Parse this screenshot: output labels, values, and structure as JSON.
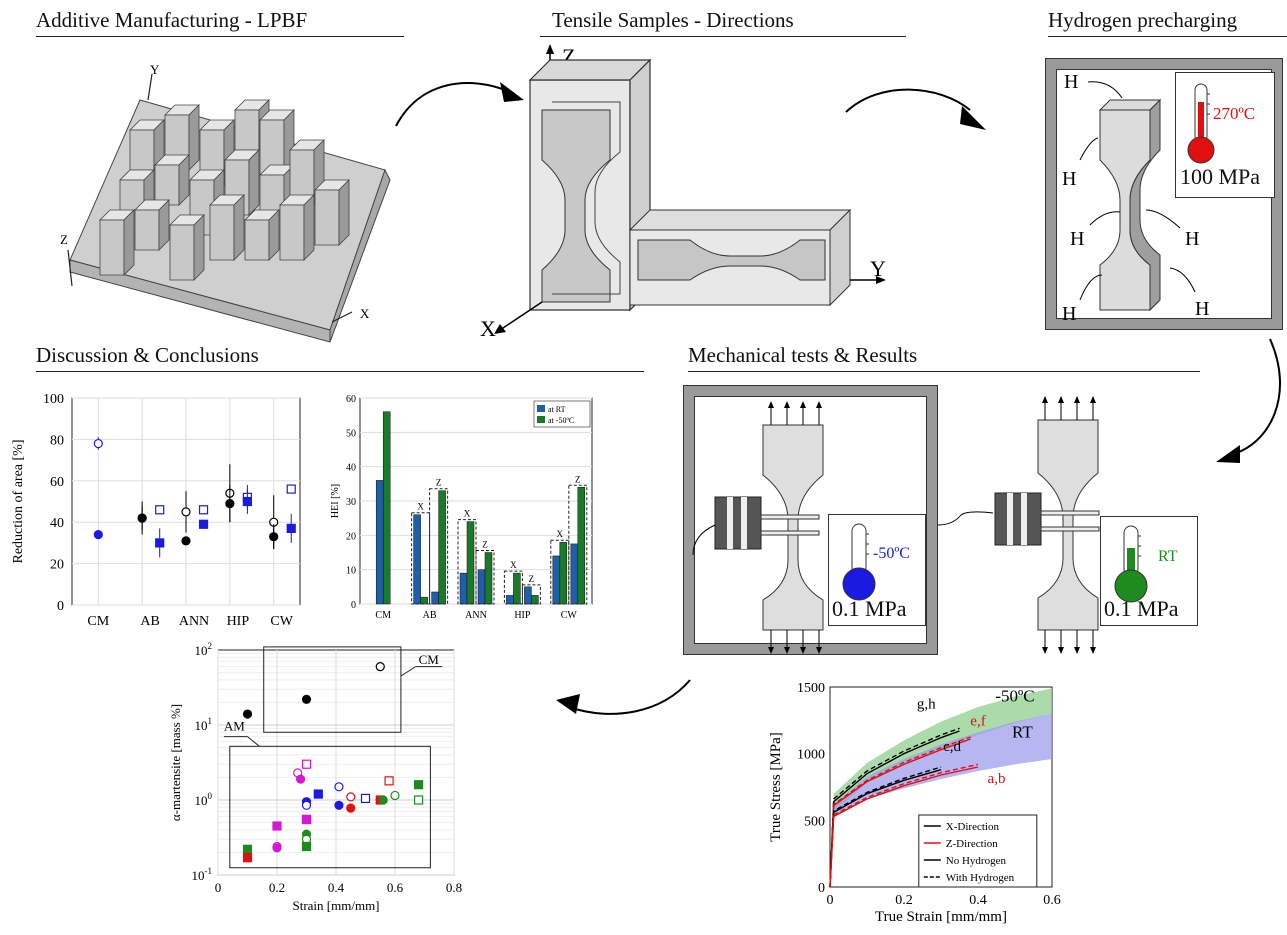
{
  "sections": {
    "am": "Additive Manufacturing - LPBF",
    "tensile": "Tensile Samples - Directions",
    "hydrogen": "Hydrogen precharging",
    "discussion": "Discussion & Conclusions",
    "mechanical": "Mechanical tests & Results"
  },
  "am_axes": {
    "y": "Y",
    "z": "Z",
    "x": "X"
  },
  "tensile_axes": {
    "z": "Z",
    "x": "X",
    "y": "Y"
  },
  "precharge": {
    "h": "H",
    "temperature": "270ºC",
    "pressure": "100 MPa"
  },
  "mech_tests": {
    "cold": {
      "temperature": "-50ºC",
      "pressure": "0.1 MPa"
    },
    "rt": {
      "temperature": "RT",
      "pressure": "0.1 MPa"
    }
  },
  "colors": {
    "blue": "#1a1ae0",
    "green": "#1f8a1f",
    "red": "#e01010",
    "magenta": "#d21ad2",
    "bar_blue": "#1f5fa8",
    "bar_green": "#1a7a2a"
  },
  "chart_data": [
    {
      "id": "reduction-of-area",
      "type": "scatter",
      "ylabel": "Reduction of area [%]",
      "categories": [
        "CM",
        "AB",
        "ANN",
        "HIP",
        "CW"
      ],
      "ylim": [
        0,
        100
      ],
      "yticks": [
        0,
        20,
        40,
        60,
        80,
        100
      ],
      "grid": true,
      "series": [
        {
          "marker": "open-circle",
          "color": "#1a1ae0",
          "x": [
            1.0
          ],
          "y": [
            78
          ],
          "err": [
            3
          ]
        },
        {
          "marker": "filled-circle",
          "color": "#1a1ae0",
          "x": [
            1.0
          ],
          "y": [
            34
          ],
          "err": [
            1
          ]
        },
        {
          "marker": "open-circle",
          "color": "#000000",
          "x": [
            2.0,
            3.0,
            4.0,
            5.0
          ],
          "y": [
            42,
            45,
            54,
            40
          ],
          "err": [
            6,
            10,
            14,
            13
          ]
        },
        {
          "marker": "filled-circle",
          "color": "#000000",
          "x": [
            2.0,
            3.0,
            4.0,
            5.0
          ],
          "y": [
            42,
            31,
            49,
            33
          ],
          "err": [
            8,
            0,
            9,
            6
          ]
        },
        {
          "marker": "open-square",
          "color": "#1a1ae0",
          "x": [
            2.4,
            3.4,
            4.4,
            5.4
          ],
          "y": [
            46,
            46,
            52,
            56
          ],
          "err": [
            0,
            2,
            6,
            2
          ]
        },
        {
          "marker": "filled-square",
          "color": "#1a1ae0",
          "x": [
            2.4,
            3.4,
            4.4,
            5.4
          ],
          "y": [
            30,
            39,
            50,
            37
          ],
          "err": [
            7,
            0,
            6,
            7
          ]
        }
      ]
    },
    {
      "id": "hei",
      "type": "bar",
      "ylabel": "HEI [%]",
      "categories": [
        "CM",
        "AB",
        "ANN",
        "HIP",
        "CW"
      ],
      "ylim": [
        0,
        60
      ],
      "yticks": [
        0,
        10,
        20,
        30,
        40,
        50,
        60
      ],
      "legend": {
        "position": "top-right",
        "entries": [
          "at RT",
          "at -50ºC"
        ]
      },
      "bar_groups": [
        {
          "category": "CM",
          "bars": [
            {
              "label": "",
              "rt": 36,
              "cold": 56
            }
          ]
        },
        {
          "category": "AB",
          "bars": [
            {
              "label": "X",
              "rt": 26,
              "cold": 2
            },
            {
              "label": "Z",
              "rt": 3.5,
              "cold": 33
            }
          ]
        },
        {
          "category": "ANN",
          "bars": [
            {
              "label": "X",
              "rt": 9,
              "cold": 24
            },
            {
              "label": "Z",
              "rt": 10,
              "cold": 15
            }
          ]
        },
        {
          "category": "HIP",
          "bars": [
            {
              "label": "X",
              "rt": 2.5,
              "cold": 9
            },
            {
              "label": "Z",
              "rt": 5,
              "cold": 2.5
            }
          ]
        },
        {
          "category": "CW",
          "bars": [
            {
              "label": "X",
              "rt": 14,
              "cold": 18
            },
            {
              "label": "Z",
              "rt": 17.5,
              "cold": 34
            }
          ]
        }
      ]
    },
    {
      "id": "martensite",
      "type": "scatter",
      "ylabel": "α-martensite [mass %]",
      "xlabel": "Strain [mm/mm]",
      "yscale": "log",
      "ylim": [
        0.1,
        100
      ],
      "xlim": [
        0,
        0.8
      ],
      "xticks": [
        0,
        0.2,
        0.4,
        0.6,
        0.8
      ],
      "annotations": [
        "CM",
        "AM"
      ],
      "points": [
        {
          "x": 0.1,
          "y": 14,
          "m": "fc",
          "c": "#000000"
        },
        {
          "x": 0.3,
          "y": 22,
          "m": "fc",
          "c": "#000000"
        },
        {
          "x": 0.55,
          "y": 60,
          "m": "oc",
          "c": "#000000"
        },
        {
          "x": 0.1,
          "y": 0.22,
          "m": "fs",
          "c": "#1f8a1f"
        },
        {
          "x": 0.1,
          "y": 0.17,
          "m": "fs",
          "c": "#e01010"
        },
        {
          "x": 0.2,
          "y": 0.45,
          "m": "fs",
          "c": "#d21ad2"
        },
        {
          "x": 0.2,
          "y": 0.24,
          "m": "oc",
          "c": "#d21ad2"
        },
        {
          "x": 0.2,
          "y": 0.23,
          "m": "fc",
          "c": "#d21ad2"
        },
        {
          "x": 0.27,
          "y": 2.3,
          "m": "oc",
          "c": "#d21ad2"
        },
        {
          "x": 0.28,
          "y": 1.9,
          "m": "fc",
          "c": "#d21ad2"
        },
        {
          "x": 0.3,
          "y": 3.0,
          "m": "os",
          "c": "#d21ad2"
        },
        {
          "x": 0.3,
          "y": 0.95,
          "m": "fc",
          "c": "#1a1ae0"
        },
        {
          "x": 0.3,
          "y": 0.85,
          "m": "oc",
          "c": "#1a1ae0"
        },
        {
          "x": 0.3,
          "y": 0.55,
          "m": "os",
          "c": "#1a1ae0"
        },
        {
          "x": 0.3,
          "y": 0.55,
          "m": "fs",
          "c": "#d21ad2"
        },
        {
          "x": 0.3,
          "y": 0.35,
          "m": "fc",
          "c": "#1f8a1f"
        },
        {
          "x": 0.3,
          "y": 0.3,
          "m": "oc",
          "c": "#1f8a1f"
        },
        {
          "x": 0.3,
          "y": 0.24,
          "m": "fs",
          "c": "#1f8a1f"
        },
        {
          "x": 0.34,
          "y": 1.2,
          "m": "fs",
          "c": "#1a1ae0"
        },
        {
          "x": 0.41,
          "y": 1.5,
          "m": "oc",
          "c": "#1a1ae0"
        },
        {
          "x": 0.41,
          "y": 0.85,
          "m": "fc",
          "c": "#1a1ae0"
        },
        {
          "x": 0.45,
          "y": 1.1,
          "m": "oc",
          "c": "#e01010"
        },
        {
          "x": 0.45,
          "y": 0.78,
          "m": "fc",
          "c": "#e01010"
        },
        {
          "x": 0.5,
          "y": 1.05,
          "m": "os",
          "c": "#1a1ae0"
        },
        {
          "x": 0.55,
          "y": 1.0,
          "m": "fs",
          "c": "#e01010"
        },
        {
          "x": 0.56,
          "y": 1.0,
          "m": "fc",
          "c": "#1f8a1f"
        },
        {
          "x": 0.58,
          "y": 1.8,
          "m": "os",
          "c": "#e01010"
        },
        {
          "x": 0.6,
          "y": 1.15,
          "m": "oc",
          "c": "#1f8a1f"
        },
        {
          "x": 0.68,
          "y": 1.6,
          "m": "fs",
          "c": "#1f8a1f"
        },
        {
          "x": 0.68,
          "y": 1.0,
          "m": "os",
          "c": "#1f8a1f"
        }
      ]
    },
    {
      "id": "stress-strain",
      "type": "line",
      "xlabel": "True Strain [mm/mm]",
      "ylabel": "True Stress [MPa]",
      "xlim": [
        0,
        0.6
      ],
      "ylim": [
        0,
        1500
      ],
      "xticks": [
        0,
        0.2,
        0.4,
        0.6
      ],
      "yticks": [
        0,
        500,
        1000,
        1500
      ],
      "bands": [
        {
          "label": "-50ºC",
          "color": "#8fcf8f",
          "x": [
            0.01,
            0.1,
            0.2,
            0.3,
            0.4,
            0.5,
            0.6
          ],
          "lower": [
            560,
            780,
            920,
            1040,
            1140,
            1230,
            1300
          ],
          "upper": [
            700,
            930,
            1100,
            1240,
            1350,
            1430,
            1490
          ]
        },
        {
          "label": "RT",
          "color": "#9d9dee",
          "x": [
            0.01,
            0.1,
            0.2,
            0.3,
            0.4,
            0.5,
            0.6
          ],
          "lower": [
            520,
            660,
            740,
            810,
            870,
            920,
            960
          ],
          "upper": [
            620,
            830,
            960,
            1070,
            1160,
            1240,
            1300
          ]
        }
      ],
      "curve_groups": [
        {
          "label": "g,h",
          "x": [
            0,
            0.01,
            0.1,
            0.2,
            0.3,
            0.35
          ],
          "curves": [
            {
              "color": "#000000",
              "dash": false,
              "y": [
                0,
                640,
                850,
                1000,
                1120,
                1170
              ]
            },
            {
              "color": "#000000",
              "dash": true,
              "y": [
                0,
                660,
                870,
                1020,
                1140,
                1190
              ]
            }
          ]
        },
        {
          "label": "e,f",
          "x": [
            0,
            0.01,
            0.1,
            0.2,
            0.3,
            0.38
          ],
          "curves": [
            {
              "color": "#e01010",
              "dash": false,
              "y": [
                0,
                610,
                790,
                920,
                1030,
                1110
              ]
            },
            {
              "color": "#e01010",
              "dash": true,
              "y": [
                0,
                620,
                800,
                935,
                1045,
                1125
              ]
            }
          ]
        },
        {
          "label": "c,d",
          "x": [
            0,
            0.01,
            0.1,
            0.2,
            0.3
          ],
          "curves": [
            {
              "color": "#000000",
              "dash": false,
              "y": [
                0,
                560,
                700,
                800,
                880
              ]
            },
            {
              "color": "#000000",
              "dash": true,
              "y": [
                0,
                570,
                710,
                815,
                900
              ]
            }
          ]
        },
        {
          "label": "a,b",
          "x": [
            0,
            0.01,
            0.1,
            0.2,
            0.3,
            0.4
          ],
          "curves": [
            {
              "color": "#e01010",
              "dash": false,
              "y": [
                0,
                530,
                660,
                760,
                840,
                900
              ]
            },
            {
              "color": "#e01010",
              "dash": true,
              "y": [
                0,
                540,
                672,
                775,
                857,
                920
              ]
            }
          ]
        }
      ],
      "legend": {
        "position": "bottom-right",
        "entries": [
          "X-Direction",
          "Z-Direction",
          "No Hydrogen",
          "With Hydrogen"
        ]
      }
    }
  ]
}
